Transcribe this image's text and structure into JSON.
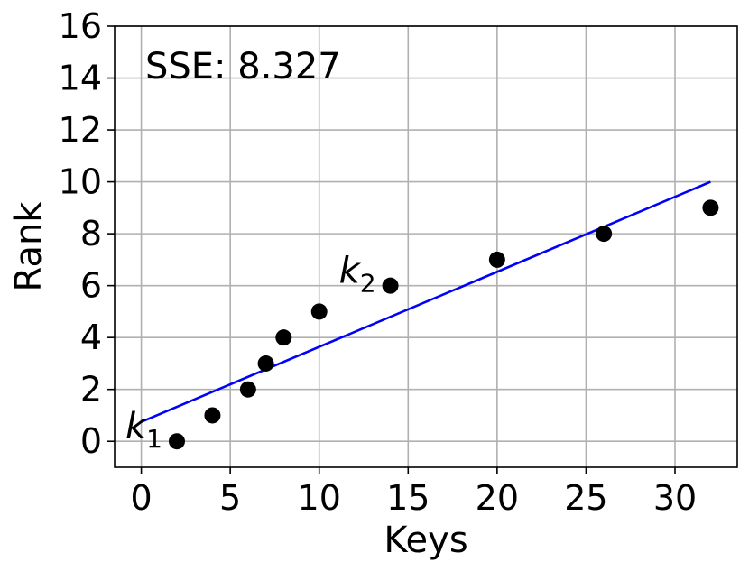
{
  "chart_data": {
    "type": "scatter",
    "xlabel": "Keys",
    "ylabel": "Rank",
    "xlim": [
      -1.5,
      33.5
    ],
    "ylim": [
      -1,
      16
    ],
    "x_ticks": [
      0,
      5,
      10,
      15,
      20,
      25,
      30
    ],
    "y_ticks": [
      0,
      2,
      4,
      6,
      8,
      10,
      12,
      14,
      16
    ],
    "grid": true,
    "annotation": "SSE: 8.327",
    "points": {
      "x": [
        2,
        4,
        6,
        7,
        8,
        10,
        14,
        20,
        26,
        32
      ],
      "y": [
        0,
        1,
        2,
        3,
        4,
        5,
        6,
        7,
        8,
        9
      ],
      "color": "#000000"
    },
    "fit_line": {
      "x": [
        0,
        32
      ],
      "y": [
        0.75,
        10
      ],
      "color": "#0000ff"
    },
    "point_labels": [
      {
        "text": "k",
        "sub": "1",
        "x": 2,
        "y": 0
      },
      {
        "text": "k",
        "sub": "2",
        "x": 14,
        "y": 6
      }
    ]
  }
}
